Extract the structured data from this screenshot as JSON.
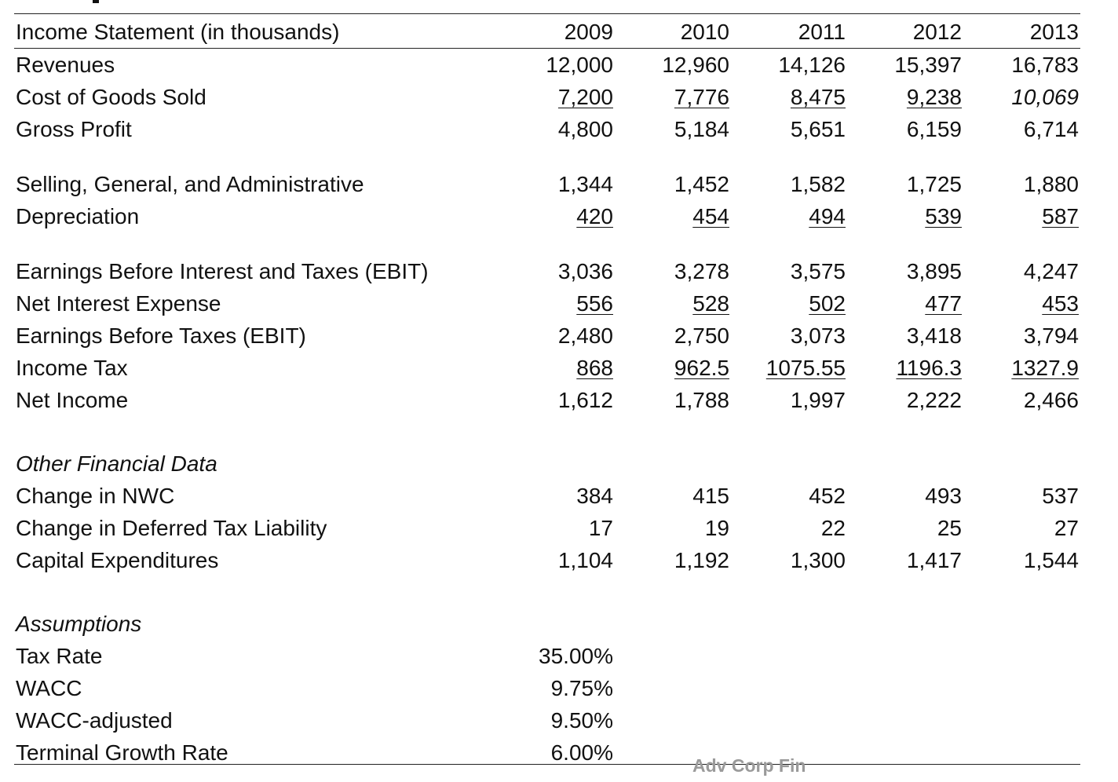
{
  "header": {
    "label": "Income Statement (in thousands)",
    "years": [
      "2009",
      "2010",
      "2011",
      "2012",
      "2013"
    ]
  },
  "income_statement": [
    {
      "label": "Revenues",
      "values": [
        "12,000",
        "12,960",
        "14,126",
        "15,397",
        "16,783"
      ],
      "underline": false
    },
    {
      "label": "Cost of Goods Sold",
      "values": [
        "7,200",
        "7,776",
        "8,475",
        "9,238",
        "10,069"
      ],
      "underline": true
    },
    {
      "label": "Gross Profit",
      "values": [
        "4,800",
        "5,184",
        "5,651",
        "6,159",
        "6,714"
      ],
      "underline": false
    },
    {
      "label": "Selling, General, and Administrative",
      "values": [
        "1,344",
        "1,452",
        "1,582",
        "1,725",
        "1,880"
      ],
      "underline": false
    },
    {
      "label": "Depreciation",
      "values": [
        "420",
        "454",
        "494",
        "539",
        "587"
      ],
      "underline": true
    },
    {
      "label": "Earnings Before Interest and Taxes (EBIT)",
      "values": [
        "3,036",
        "3,278",
        "3,575",
        "3,895",
        "4,247"
      ],
      "underline": false
    },
    {
      "label": "Net Interest Expense",
      "values": [
        "556",
        "528",
        "502",
        "477",
        "453"
      ],
      "underline": true
    },
    {
      "label": "Earnings Before Taxes (EBIT)",
      "values": [
        "2,480",
        "2,750",
        "3,073",
        "3,418",
        "3,794"
      ],
      "underline": false
    },
    {
      "label": "Income Tax",
      "values": [
        "868",
        "962.5",
        "1075.55",
        "1196.3",
        "1327.9"
      ],
      "underline": true
    },
    {
      "label": "Net Income",
      "values": [
        "1,612",
        "1,788",
        "1,997",
        "2,222",
        "2,466"
      ],
      "underline": false
    }
  ],
  "other_financial_data": {
    "title": "Other Financial Data",
    "rows": [
      {
        "label": "Change in NWC",
        "values": [
          "384",
          "415",
          "452",
          "493",
          "537"
        ]
      },
      {
        "label": "Change in Deferred Tax Liability",
        "values": [
          "17",
          "19",
          "22",
          "25",
          "27"
        ]
      },
      {
        "label": "Capital Expenditures",
        "values": [
          "1,104",
          "1,192",
          "1,300",
          "1,417",
          "1,544"
        ]
      }
    ]
  },
  "assumptions": {
    "title": "Assumptions",
    "rows": [
      {
        "label": "Tax Rate",
        "value": "35.00%"
      },
      {
        "label": "WACC",
        "value": "9.75%"
      },
      {
        "label": "WACC-adjusted",
        "value": "9.50%"
      },
      {
        "label": "Terminal Growth Rate",
        "value": "6.00%"
      }
    ]
  },
  "watermark": "Adv Corp Fin"
}
